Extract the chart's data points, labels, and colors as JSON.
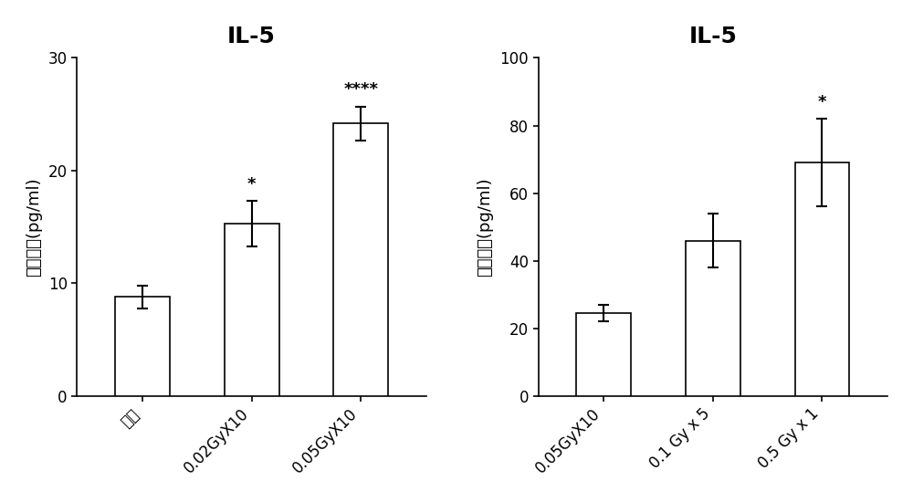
{
  "left_chart": {
    "title": "IL-5",
    "categories": [
      "对照",
      "0.02GyX10",
      "0.05GyX10"
    ],
    "values": [
      8.8,
      15.3,
      24.2
    ],
    "errors": [
      1.0,
      2.0,
      1.5
    ],
    "significance": [
      "",
      "*",
      "****"
    ],
    "ylabel": "血浆含量(pg/ml)",
    "ylim": [
      0,
      30
    ],
    "yticks": [
      0,
      10,
      20,
      30
    ]
  },
  "right_chart": {
    "title": "IL-5",
    "categories": [
      "0.05GyX10",
      "0.1 Gy x 5",
      "0.5 Gy x 1"
    ],
    "values": [
      24.5,
      46.0,
      69.0
    ],
    "errors": [
      2.5,
      8.0,
      13.0
    ],
    "significance": [
      "",
      "",
      "*"
    ],
    "ylabel": "血浆含量(pg/ml)",
    "ylim": [
      0,
      100
    ],
    "yticks": [
      0,
      20,
      40,
      60,
      80,
      100
    ]
  },
  "bar_color": "#ffffff",
  "bar_edgecolor": "#000000",
  "title_fontsize": 18,
  "label_fontsize": 13,
  "tick_fontsize": 12,
  "sig_fontsize": 13,
  "bar_width": 0.5,
  "capsize": 4,
  "elinewidth": 1.5,
  "ecapthick": 1.5
}
